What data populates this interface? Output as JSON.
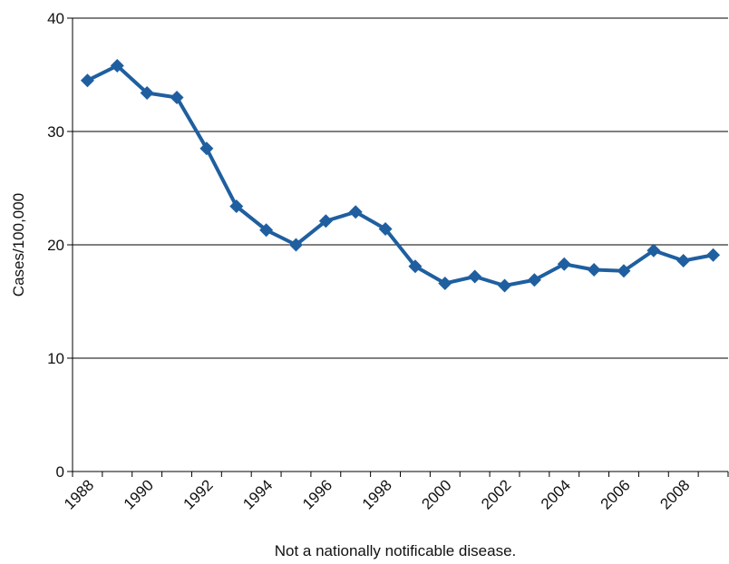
{
  "chart_data": {
    "type": "line",
    "title": "",
    "xlabel": "",
    "ylabel": "Cases/100,000",
    "footnote": "Not a nationally notificable disease.",
    "x": [
      1988,
      1989,
      1990,
      1991,
      1992,
      1993,
      1994,
      1995,
      1996,
      1997,
      1998,
      1999,
      2000,
      2001,
      2002,
      2003,
      2004,
      2005,
      2006,
      2007,
      2008,
      2009
    ],
    "x_tick_labels": [
      "1988",
      "1990",
      "1992",
      "1994",
      "1996",
      "1998",
      "2000",
      "2002",
      "2004",
      "2006",
      "2008"
    ],
    "y_tick_labels": [
      "0",
      "10",
      "20",
      "30",
      "40"
    ],
    "series": [
      {
        "values": [
          34.5,
          35.8,
          33.4,
          33.0,
          28.5,
          23.4,
          21.3,
          20.0,
          22.1,
          22.9,
          21.4,
          18.1,
          16.6,
          17.2,
          16.4,
          16.9,
          18.3,
          17.8,
          17.7,
          19.5,
          18.6,
          19.1
        ]
      }
    ],
    "ylim": [
      0,
      40
    ],
    "grid": "horizontal",
    "colors": {
      "line": "#1f5fa0",
      "grid": "#000000",
      "axis": "#000000"
    }
  }
}
